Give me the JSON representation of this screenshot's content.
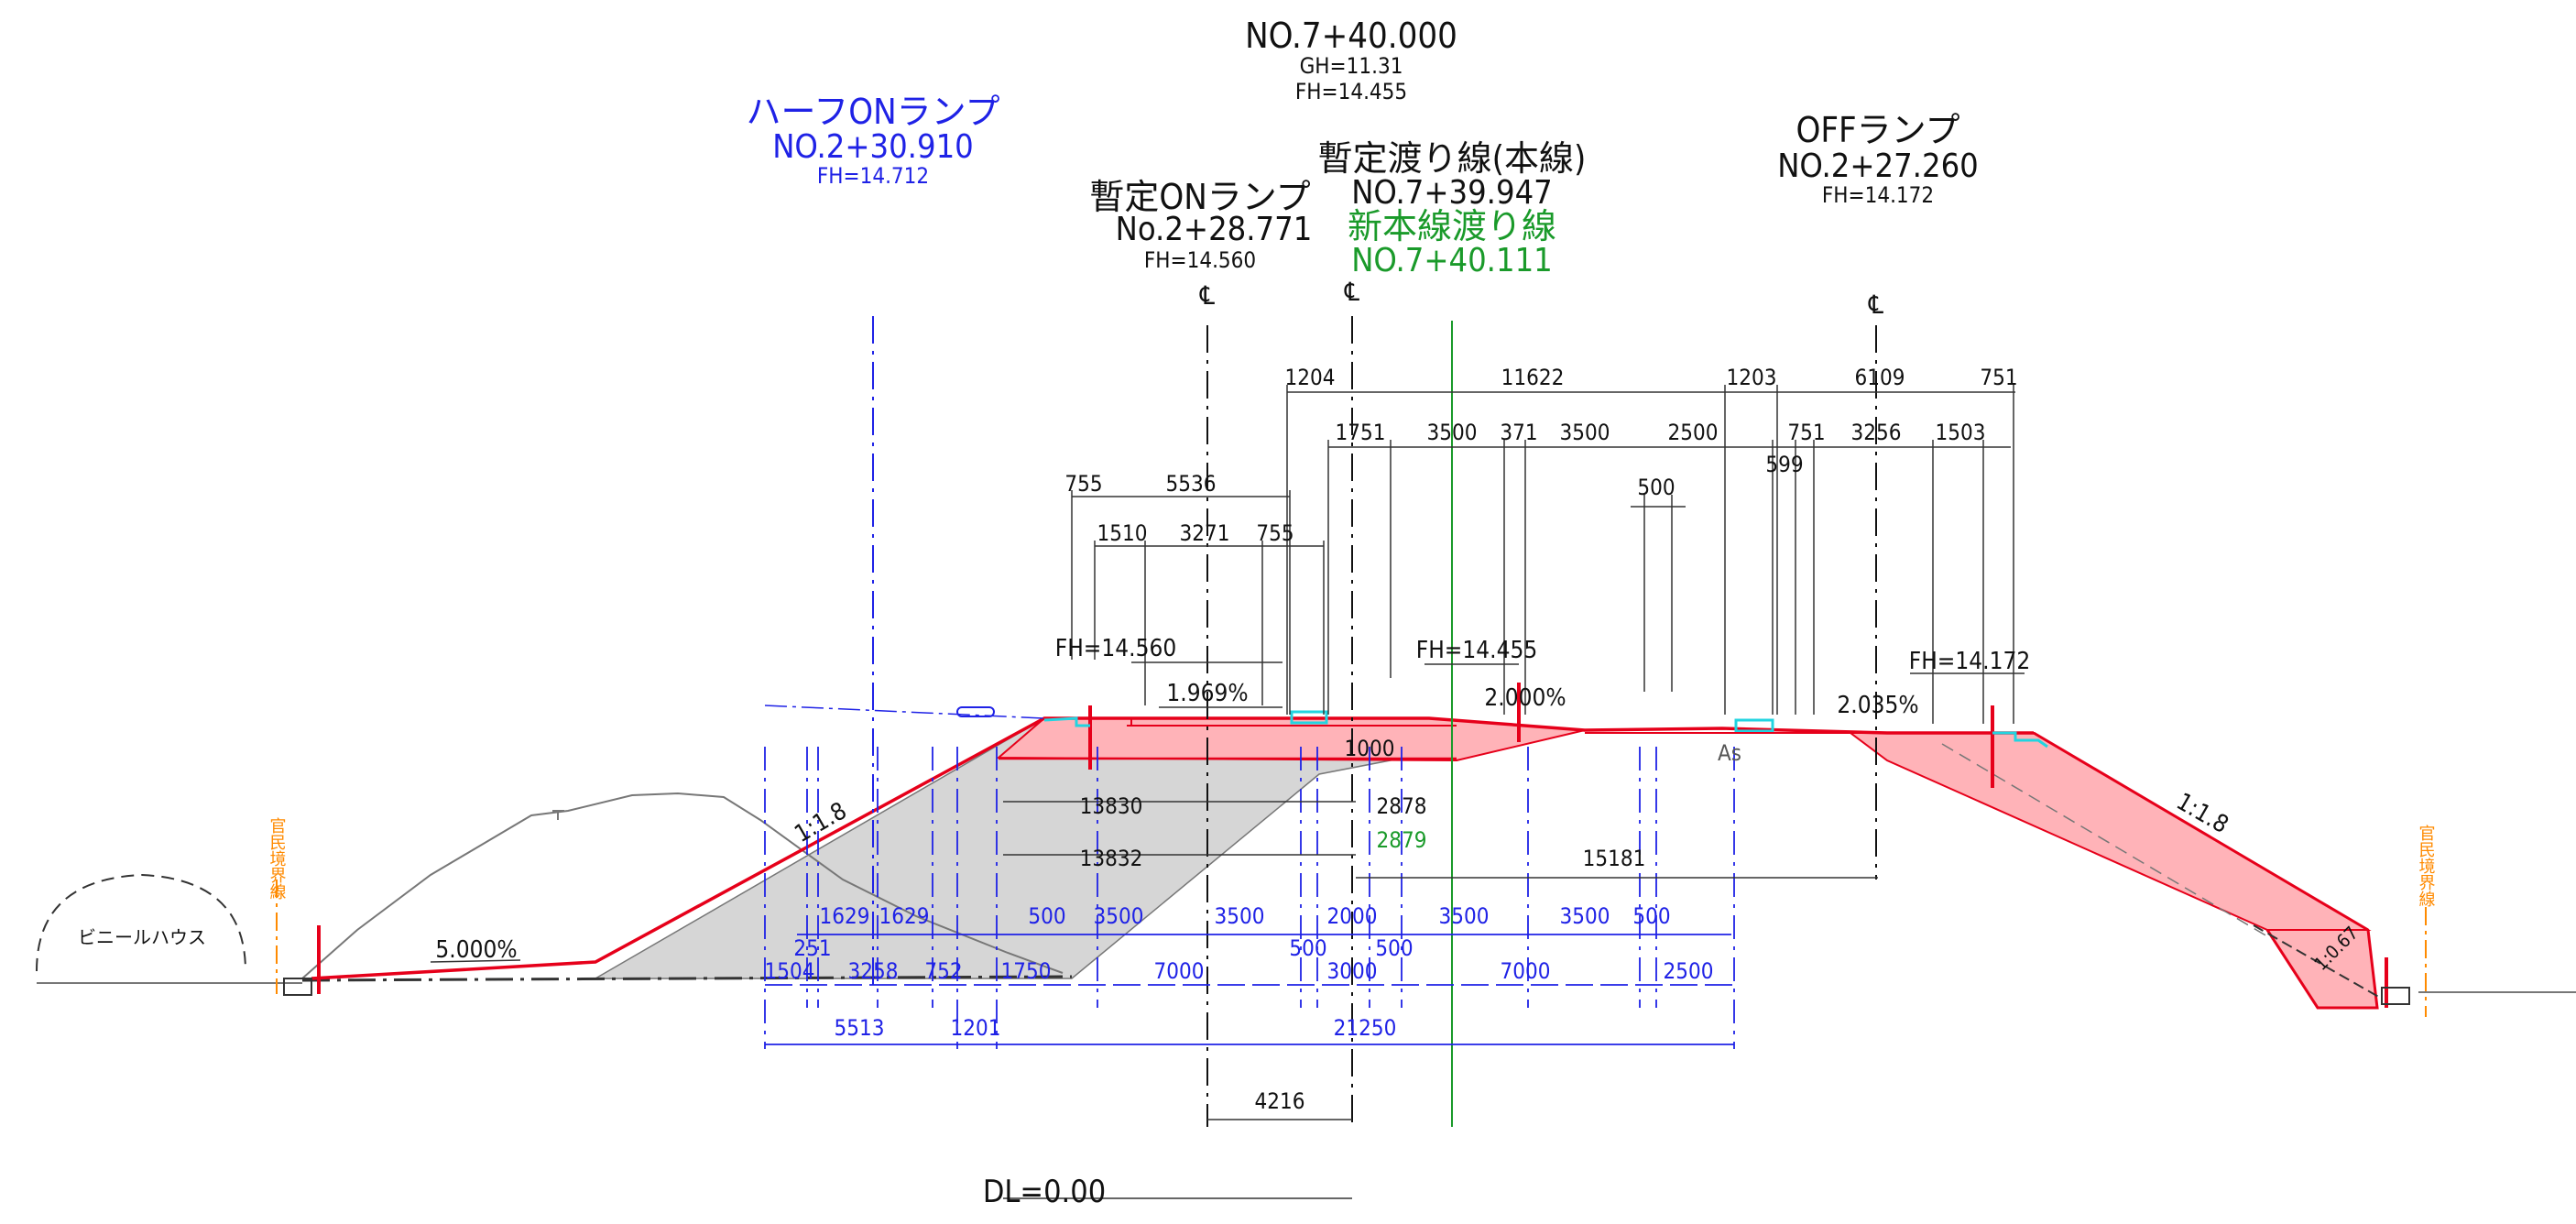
{
  "colors": {
    "black": "#111111",
    "blue": "#1f22e6",
    "green": "#1a9a2a",
    "red": "#e6001a",
    "fill_red": "#ffb3b8",
    "fill_gray": "#d6d6d6",
    "orange": "#ff8a00",
    "cyan": "#22d4e0"
  },
  "labels": {
    "main_station": "NO.7+40.000",
    "main_gh": "GH=11.31",
    "main_fh": "FH=14.455",
    "half_on_title": "ハーフONランプ",
    "half_on_station": "NO.2+30.910",
    "half_on_fh": "FH=14.712",
    "temp_on_title": "暫定ONランプ",
    "temp_on_station": "No.2+28.771",
    "temp_on_fh": "FH=14.560",
    "temp_cross_title": "暫定渡り線(本線)",
    "temp_cross_station": "NO.7+39.947",
    "new_cross_title": "新本線渡り線",
    "new_cross_station": "NO.7+40.111",
    "off_title": "OFFランプ",
    "off_station": "NO.2+27.260",
    "off_fh": "FH=14.172",
    "cl_symbol": "℄",
    "fh_left": "FH=14.560",
    "fh_mid": "FH=14.455",
    "fh_right": "FH=14.172",
    "slope_1": "1.969%",
    "slope_2": "2.000%",
    "slope_3": "2.035%",
    "slope_4": "5.000%",
    "embank_left": "1:1.8",
    "embank_right": "1:1.8",
    "embank_small": "1:0.67",
    "as_label": "As",
    "boundary_left": "官民境界線",
    "boundary_right": "官民境界線",
    "greenhouse": "ビニールハウス",
    "datum": "DL=0.00"
  },
  "dims_top": {
    "d1204": "1204",
    "d11622": "11622",
    "d1203": "1203",
    "d6109": "6109",
    "d751a": "751",
    "d1751": "1751",
    "d3500a": "3500",
    "d371": "371",
    "d3500b": "3500",
    "d2500": "2500",
    "d751b": "751",
    "d3256": "3256",
    "d1503": "1503",
    "d599": "599",
    "d500": "500",
    "d755a": "755",
    "d5536": "5536",
    "d1510": "1510",
    "d3271": "3271",
    "d755b": "755"
  },
  "dims_mid": {
    "d1000": "1000",
    "d13830": "13830",
    "d2878": "2878",
    "d2879": "2879",
    "d13832": "13832",
    "d15181": "15181"
  },
  "dims_bottom": {
    "r1": [
      "1629",
      "1629",
      "500",
      "3500",
      "3500",
      "2000",
      "3500",
      "3500",
      "500"
    ],
    "r1b": [
      "251",
      "500",
      "500"
    ],
    "r2": [
      "1504",
      "3258",
      "752",
      "1750",
      "7000",
      "3000",
      "7000",
      "2500"
    ],
    "r3": [
      "5513",
      "1201",
      "21250"
    ],
    "d4216": "4216"
  }
}
